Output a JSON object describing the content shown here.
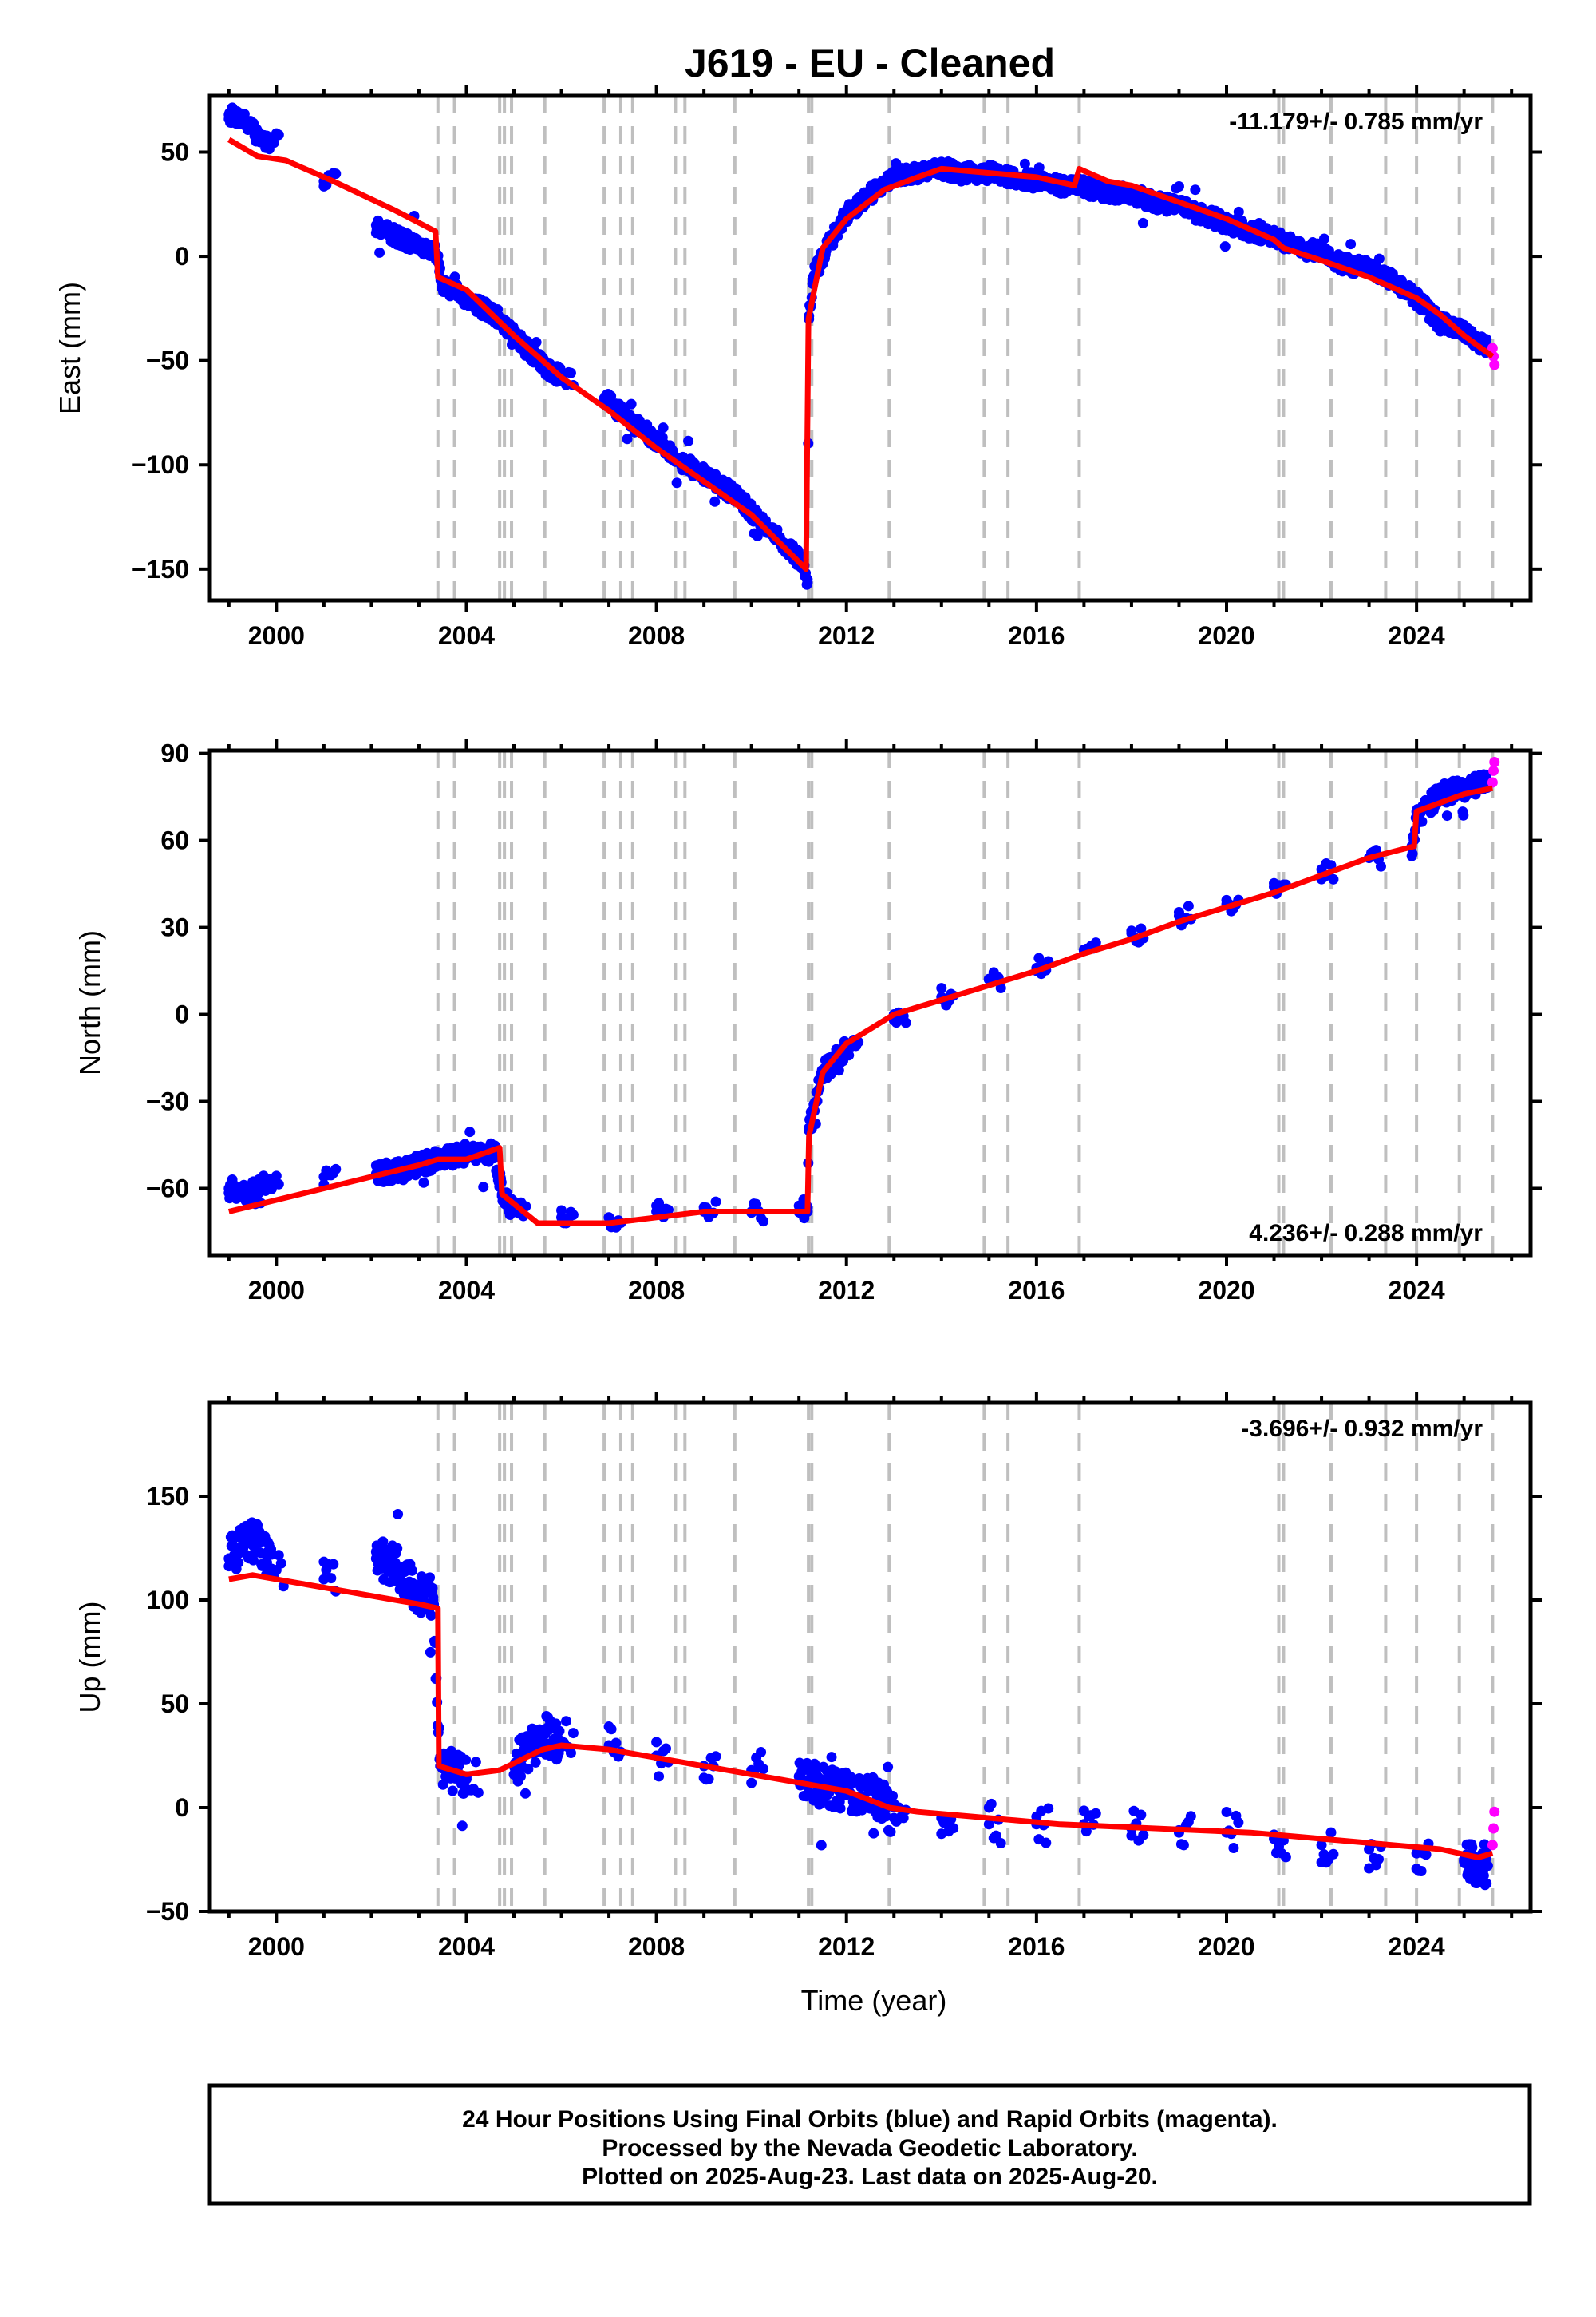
{
  "chart_data": [
    {
      "type": "scatter",
      "panel": "east",
      "title": "J619  - EU - Cleaned",
      "ylabel": "East (mm)",
      "xlabel": "",
      "rate_label": "-11.179+/- 0.785 mm/yr",
      "rate_position": "top-right",
      "xlim": [
        1998.6,
        2026.4
      ],
      "ylim": [
        -165,
        77
      ],
      "yticks": [
        -150,
        -100,
        -50,
        0,
        50
      ],
      "xticks": [
        2000,
        2004,
        2008,
        2012,
        2016,
        2020,
        2024
      ],
      "xticks_labeled": true,
      "grid": false,
      "breaks": [
        2003.4,
        2003.75,
        2004.7,
        2004.8,
        2004.95,
        2005.65,
        2006.9,
        2007.25,
        2007.5,
        2008.4,
        2008.6,
        2009.65,
        2011.2,
        2011.27,
        2012.9,
        2014.9,
        2015.4,
        2016.9,
        2021.1,
        2021.2,
        2022.2,
        2023.35,
        2024.0,
        2024.9,
        2025.6
      ],
      "series": [
        {
          "color": "#0000ff",
          "x": [
            1999.0,
            1999.3,
            1999.6,
            1999.8,
            2001.0,
            2002.1,
            2002.5,
            2003.0,
            2003.35,
            2003.5,
            2004.0,
            2004.7,
            2005.0,
            2005.6,
            2006.0,
            2006.9,
            2007.4,
            2008.0,
            2008.5,
            2009.0,
            2009.7,
            2010.2,
            2010.8,
            2011.1,
            2011.18,
            2011.21,
            2011.3,
            2011.6,
            2012.0,
            2012.5,
            2013.0,
            2013.5,
            2014.0,
            2014.5,
            2015.0,
            2015.5,
            2016.0,
            2016.5,
            2017.0,
            2017.5,
            2018.0,
            2018.5,
            2019.0,
            2019.5,
            2020.0,
            2020.5,
            2021.0,
            2021.5,
            2022.0,
            2022.5,
            2023.0,
            2023.5,
            2024.0,
            2024.5,
            2025.0,
            2025.5
          ],
          "y": [
            68,
            66,
            58,
            55,
            36,
            15,
            10,
            5,
            2,
            -13,
            -20,
            -30,
            -38,
            -52,
            -58,
            -68,
            -78,
            -88,
            -98,
            -105,
            -115,
            -128,
            -140,
            -148,
            -155,
            -30,
            -10,
            5,
            20,
            30,
            38,
            40,
            42,
            40,
            40,
            38,
            36,
            34,
            33,
            31,
            30,
            26,
            24,
            20,
            16,
            12,
            10,
            4,
            2,
            -4,
            -6,
            -12,
            -20,
            -32,
            -36,
            -44
          ]
        },
        {
          "color": "#ff00ff",
          "x": [
            2025.6,
            2025.62,
            2025.64
          ],
          "y": [
            -44,
            -48,
            -52
          ]
        },
        {
          "color": "#ff0000",
          "x": [
            1999.0,
            1999.6,
            2000.2,
            2001.2,
            2002.5,
            2003.35,
            2003.4,
            2004.0,
            2005.0,
            2006.0,
            2007.0,
            2008.0,
            2009.0,
            2010.0,
            2011.15,
            2011.2,
            2011.5,
            2012.0,
            2012.8,
            2013.5,
            2014.0,
            2015.0,
            2016.0,
            2016.8,
            2016.9,
            2017.5,
            2018.0,
            2019.0,
            2020.0,
            2021.0,
            2021.2,
            2022.0,
            2023.0,
            2024.0,
            2024.5,
            2025.0,
            2025.6
          ],
          "y": [
            56,
            48,
            46,
            36,
            22,
            12,
            -10,
            -16,
            -38,
            -58,
            -74,
            -92,
            -108,
            -124,
            -150,
            -30,
            4,
            18,
            32,
            38,
            42,
            40,
            38,
            34,
            42,
            36,
            34,
            26,
            18,
            8,
            4,
            -2,
            -10,
            -20,
            -28,
            -38,
            -48
          ]
        }
      ]
    },
    {
      "type": "scatter",
      "panel": "north",
      "title": "",
      "ylabel": "North (mm)",
      "xlabel": "",
      "rate_label": "4.236+/- 0.288 mm/yr",
      "rate_position": "bottom-right",
      "xlim": [
        1998.6,
        2026.4
      ],
      "ylim": [
        -83,
        91
      ],
      "yticks": [
        -60,
        -30,
        0,
        30,
        60,
        90
      ],
      "xticks": [
        2000,
        2004,
        2008,
        2012,
        2016,
        2020,
        2024
      ],
      "xticks_labeled": true,
      "grid": false,
      "breaks": [
        2003.4,
        2003.75,
        2004.7,
        2004.8,
        2004.95,
        2005.65,
        2006.9,
        2007.25,
        2007.5,
        2008.4,
        2008.6,
        2009.65,
        2011.2,
        2011.27,
        2012.9,
        2014.9,
        2015.4,
        2016.9,
        2021.1,
        2021.2,
        2022.2,
        2023.35,
        2024.0,
        2024.9,
        2025.6
      ],
      "series": [
        {
          "color": "#0000ff",
          "x": [
            1999.0,
            1999.4,
            1999.8,
            2001.0,
            2002.1,
            2002.6,
            2003.0,
            2003.4,
            2004.0,
            2004.6,
            2004.75,
            2005.0,
            2006.0,
            2007.0,
            2008.0,
            2009.0,
            2010.0,
            2011.0,
            2011.18,
            2011.21,
            2011.5,
            2012.0,
            2013.0,
            2014.0,
            2015.0,
            2016.0,
            2017.0,
            2018.0,
            2019.0,
            2020.0,
            2021.0,
            2022.0,
            2023.0,
            2023.9,
            2024.0,
            2024.5,
            2025.0,
            2025.5
          ],
          "y": [
            -60,
            -62,
            -58,
            -56,
            -55,
            -54,
            -52,
            -50,
            -48,
            -48,
            -62,
            -68,
            -70,
            -70,
            -68,
            -68,
            -68,
            -66,
            -68,
            -40,
            -20,
            -12,
            0,
            6,
            12,
            16,
            22,
            28,
            34,
            38,
            44,
            50,
            54,
            58,
            68,
            76,
            78,
            80
          ]
        },
        {
          "color": "#ff00ff",
          "x": [
            2025.6,
            2025.62,
            2025.64
          ],
          "y": [
            80,
            84,
            87
          ]
        },
        {
          "color": "#ff0000",
          "x": [
            1999.0,
            2000.0,
            2001.0,
            2002.0,
            2003.0,
            2003.4,
            2004.0,
            2004.7,
            2004.75,
            2005.5,
            2007.0,
            2008.0,
            2009.0,
            2010.0,
            2011.18,
            2011.21,
            2011.5,
            2012.0,
            2013.0,
            2014.0,
            2015.0,
            2016.0,
            2017.0,
            2018.0,
            2019.0,
            2020.0,
            2021.0,
            2022.0,
            2023.0,
            2023.95,
            2024.0,
            2025.0,
            2025.6
          ],
          "y": [
            -68,
            -64,
            -60,
            -56,
            -52,
            -50,
            -50,
            -46,
            -62,
            -72,
            -72,
            -70,
            -68,
            -68,
            -68,
            -42,
            -20,
            -10,
            0,
            5,
            10,
            15,
            21,
            26,
            32,
            37,
            42,
            48,
            54,
            58,
            70,
            76,
            78
          ]
        }
      ]
    },
    {
      "type": "scatter",
      "panel": "up",
      "title": "",
      "ylabel": "Up (mm)",
      "xlabel": "Time (year)",
      "rate_label": "-3.696+/- 0.932 mm/yr",
      "rate_position": "top-right",
      "xlim": [
        1998.6,
        2026.4
      ],
      "ylim": [
        -50,
        195
      ],
      "yticks": [
        -50,
        0,
        50,
        100,
        150
      ],
      "xticks": [
        2000,
        2004,
        2008,
        2012,
        2016,
        2020,
        2024
      ],
      "xticks_labeled": true,
      "grid": false,
      "breaks": [
        2003.4,
        2003.75,
        2004.7,
        2004.8,
        2004.95,
        2005.65,
        2006.9,
        2007.25,
        2007.5,
        2008.4,
        2008.6,
        2009.65,
        2011.2,
        2011.27,
        2012.9,
        2014.9,
        2015.4,
        2016.9,
        2021.1,
        2021.2,
        2022.2,
        2023.35,
        2024.0,
        2024.9,
        2025.6
      ],
      "series": [
        {
          "color": "#0000ff",
          "x": [
            1999.0,
            1999.3,
            1999.6,
            1999.9,
            2001.0,
            2002.1,
            2002.5,
            2002.9,
            2003.3,
            2003.45,
            2004.0,
            2005.0,
            2005.6,
            2006.0,
            2007.0,
            2008.0,
            2009.0,
            2010.0,
            2011.0,
            2011.5,
            2012.0,
            2012.7,
            2013.0,
            2014.0,
            2015.0,
            2016.0,
            2017.0,
            2018.0,
            2019.0,
            2020.0,
            2021.0,
            2022.0,
            2023.0,
            2024.0,
            2025.0,
            2025.5
          ],
          "y": [
            120,
            125,
            130,
            115,
            110,
            120,
            118,
            105,
            100,
            20,
            15,
            20,
            35,
            32,
            30,
            25,
            20,
            18,
            15,
            10,
            8,
            5,
            -5,
            -5,
            -8,
            -8,
            -8,
            -10,
            -12,
            -12,
            -15,
            -18,
            -20,
            -22,
            -25,
            -28
          ]
        },
        {
          "color": "#ff00ff",
          "x": [
            2025.6,
            2025.62,
            2025.64
          ],
          "y": [
            -18,
            -10,
            -2
          ]
        },
        {
          "color": "#ff0000",
          "x": [
            1999.0,
            1999.5,
            2000.5,
            2001.5,
            2002.5,
            2003.0,
            2003.4,
            2003.42,
            2004.0,
            2004.7,
            2005.6,
            2006.0,
            2007.0,
            2008.0,
            2009.0,
            2010.0,
            2011.0,
            2012.0,
            2012.9,
            2013.5,
            2014.5,
            2015.5,
            2016.5,
            2017.5,
            2018.5,
            2019.5,
            2020.5,
            2021.5,
            2022.5,
            2023.5,
            2024.5,
            2025.3,
            2025.6
          ],
          "y": [
            110,
            112,
            108,
            104,
            100,
            98,
            96,
            20,
            16,
            18,
            28,
            30,
            28,
            24,
            20,
            16,
            12,
            8,
            0,
            -2,
            -4,
            -6,
            -8,
            -9,
            -10,
            -11,
            -12,
            -14,
            -16,
            -18,
            -20,
            -24,
            -22
          ]
        }
      ]
    }
  ],
  "footer": {
    "line1": "24 Hour Positions Using Final Orbits (blue) and Rapid Orbits (magenta).",
    "line2": "Processed by the Nevada Geodetic Laboratory.",
    "line3": "Plotted on 2025-Aug-23. Last data on 2025-Aug-20."
  }
}
